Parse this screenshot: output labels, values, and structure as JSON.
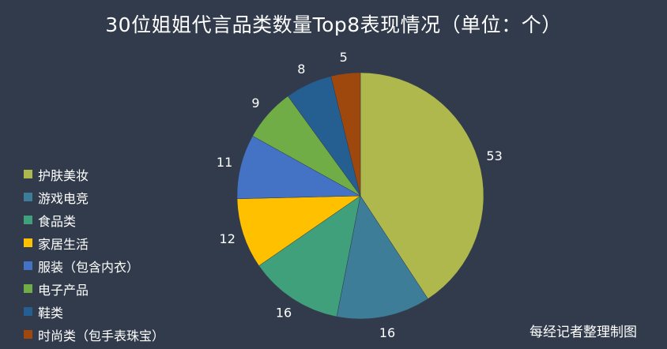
{
  "chart_data": {
    "type": "pie",
    "title": "30位姐姐代言品类数量Top8表现情况（单位：个）",
    "categories": [
      "护肤美妆",
      "游戏电竞",
      "食品类",
      "家居生活",
      "服装（包含内衣）",
      "电子产品",
      "鞋类",
      "时尚类（包手表珠宝）"
    ],
    "values": [
      53,
      16,
      16,
      12,
      11,
      9,
      8,
      5
    ],
    "colors": [
      "#afb84c",
      "#3d7d98",
      "#3fa07b",
      "#ffc000",
      "#4472c4",
      "#70ad47",
      "#255e91",
      "#9e480e"
    ],
    "legend_position": "left"
  },
  "source": "每经记者整理制图"
}
